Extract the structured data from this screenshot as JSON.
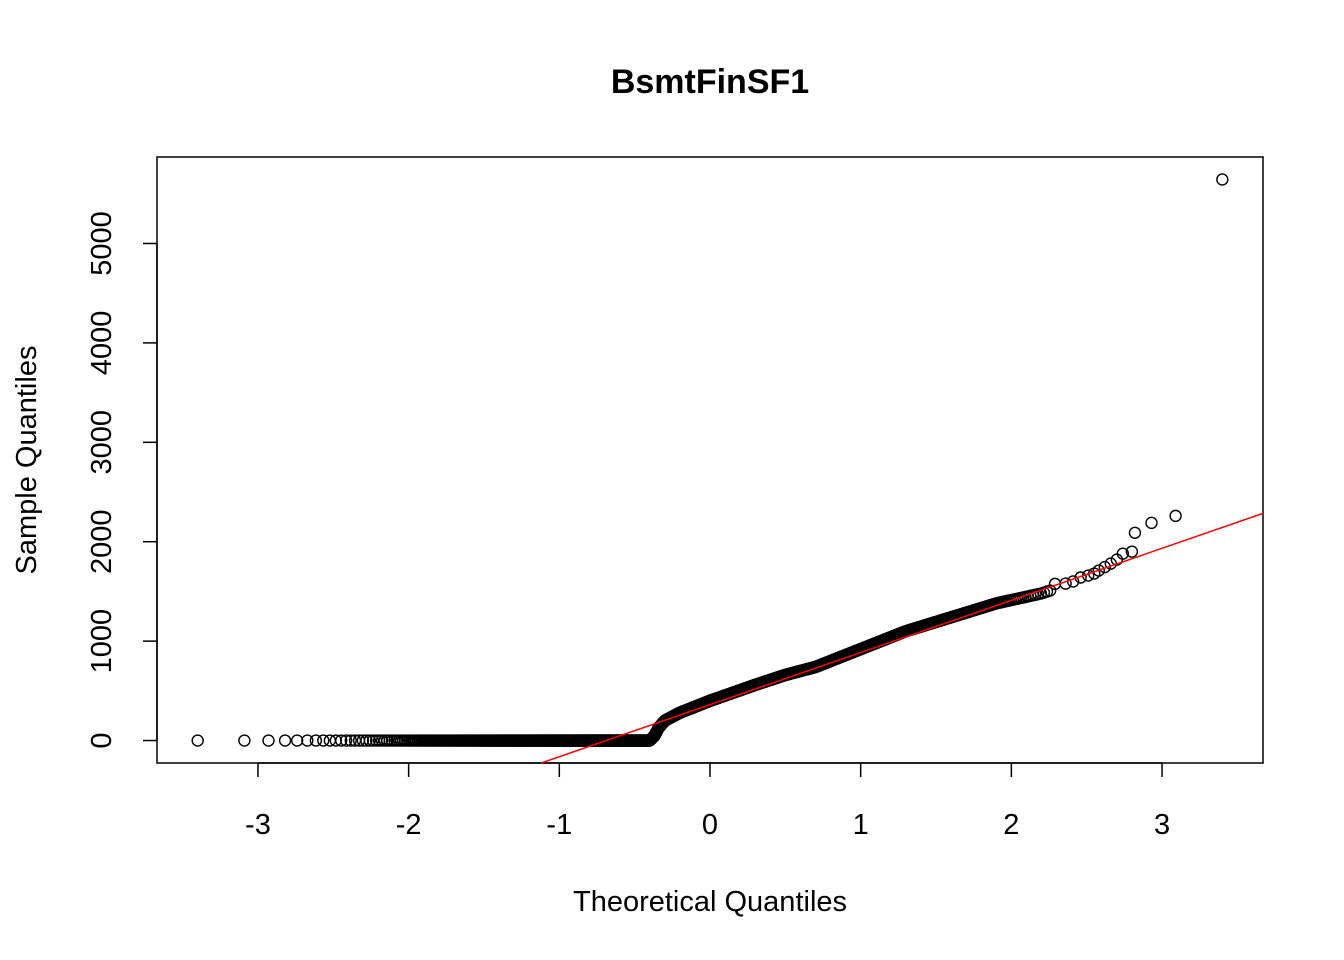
{
  "chart_data": {
    "type": "scatter",
    "subtype": "normal-qq-plot",
    "title": "BsmtFinSF1",
    "xlabel": "Theoretical Quantiles",
    "ylabel": "Sample Quantiles",
    "xlim": [
      -3.67,
      3.67
    ],
    "ylim": [
      -226,
      5870
    ],
    "x_ticks": [
      -3,
      -2,
      -1,
      0,
      1,
      2,
      3
    ],
    "y_ticks": [
      0,
      1000,
      2000,
      3000,
      4000,
      5000
    ],
    "x_tick_labels": [
      "-3",
      "-2",
      "-1",
      "0",
      "1",
      "2",
      "3"
    ],
    "y_tick_labels": [
      "0",
      "1000",
      "2000",
      "3000",
      "4000",
      "5000"
    ],
    "grid": false,
    "legend": "none",
    "point_color": "#000000",
    "line_color": "#ff0000",
    "reference_line": {
      "x": [
        -1.12,
        3.67
      ],
      "y": [
        -226,
        2285
      ]
    },
    "notable_points": [
      {
        "x": -3.4,
        "y": 0
      },
      {
        "x": -3.09,
        "y": 0
      },
      {
        "x": -2.93,
        "y": 0
      },
      {
        "x": -2.82,
        "y": 0
      },
      {
        "x": -2.74,
        "y": 0
      },
      {
        "x": 2.29,
        "y": 1576
      },
      {
        "x": 2.36,
        "y": 1579
      },
      {
        "x": 2.41,
        "y": 1600
      },
      {
        "x": 2.46,
        "y": 1640
      },
      {
        "x": 2.51,
        "y": 1660
      },
      {
        "x": 2.55,
        "y": 1680
      },
      {
        "x": 2.58,
        "y": 1710
      },
      {
        "x": 2.62,
        "y": 1745
      },
      {
        "x": 2.66,
        "y": 1780
      },
      {
        "x": 2.7,
        "y": 1820
      },
      {
        "x": 2.74,
        "y": 1880
      },
      {
        "x": 2.8,
        "y": 1900
      },
      {
        "x": 2.82,
        "y": 2090
      },
      {
        "x": 2.93,
        "y": 2190
      },
      {
        "x": 3.09,
        "y": 2260
      },
      {
        "x": 3.4,
        "y": 5644
      }
    ],
    "quantile_curve": [
      {
        "x": -3.4,
        "y": 0
      },
      {
        "x": -0.4,
        "y": 0
      },
      {
        "x": -0.37,
        "y": 45
      },
      {
        "x": -0.34,
        "y": 130
      },
      {
        "x": -0.3,
        "y": 200
      },
      {
        "x": -0.2,
        "y": 280
      },
      {
        "x": 0.0,
        "y": 400
      },
      {
        "x": 0.3,
        "y": 560
      },
      {
        "x": 0.5,
        "y": 660
      },
      {
        "x": 0.7,
        "y": 740
      },
      {
        "x": 1.0,
        "y": 920
      },
      {
        "x": 1.3,
        "y": 1100
      },
      {
        "x": 1.6,
        "y": 1240
      },
      {
        "x": 1.9,
        "y": 1380
      },
      {
        "x": 2.2,
        "y": 1480
      },
      {
        "x": 2.28,
        "y": 1520
      }
    ],
    "n_points": 1460
  }
}
